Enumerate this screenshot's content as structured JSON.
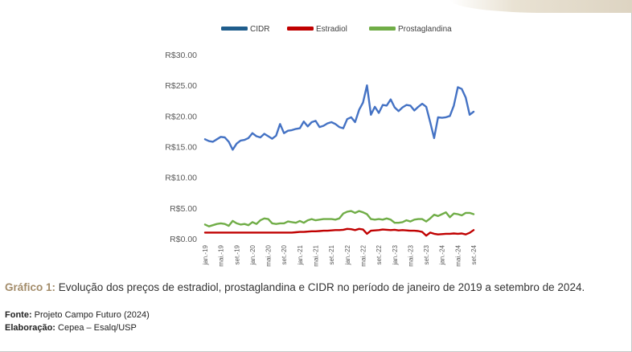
{
  "chart_data": {
    "type": "line",
    "title": "",
    "xlabel": "",
    "ylabel": "",
    "ylim": [
      0,
      30
    ],
    "y_ticks": [
      "R$30.00",
      "R$25.00",
      "R$20.00",
      "R$15.00",
      "R$10.00",
      "R$5.00",
      "R$0.00"
    ],
    "y_tick_values": [
      30,
      25,
      20,
      15,
      10,
      5,
      0
    ],
    "x_tick_labels": [
      "jan.-19",
      "mai.-19",
      "set.-19",
      "jan.-20",
      "mai.-20",
      "set.-20",
      "jan.-21",
      "mai.-21",
      "set.-21",
      "jan.-22",
      "mai.-22",
      "set.-22",
      "jan.-23",
      "mai.-23",
      "set.-23",
      "jan.-24",
      "mai.-24",
      "set.-24"
    ],
    "grid": false,
    "legend_position": "top",
    "series": [
      {
        "name": "CIDR",
        "color": "#4472c4",
        "legend_color": "#1f5d8c",
        "values": [
          16.2,
          15.9,
          15.8,
          16.2,
          16.6,
          16.5,
          15.8,
          14.5,
          15.5,
          16.0,
          16.1,
          16.4,
          17.2,
          16.7,
          16.5,
          17.1,
          16.7,
          16.3,
          16.8,
          18.7,
          17.2,
          17.6,
          17.7,
          17.9,
          18.0,
          19.1,
          18.3,
          19.0,
          19.2,
          18.2,
          18.4,
          18.8,
          19.0,
          18.7,
          18.2,
          18.0,
          19.5,
          19.8,
          19.0,
          21.0,
          22.2,
          25.0,
          20.2,
          21.5,
          20.5,
          21.8,
          21.7,
          22.7,
          21.4,
          20.8,
          21.4,
          21.8,
          21.7,
          20.9,
          21.5,
          22.0,
          21.5,
          19.0,
          16.4,
          19.8,
          19.7,
          19.8,
          20.0,
          21.7,
          24.7,
          24.4,
          23.0,
          20.2,
          20.7
        ]
      },
      {
        "name": "Estradiol",
        "color": "#c00000",
        "legend_color": "#c00000",
        "values": [
          1.0,
          1.0,
          1.0,
          1.0,
          1.0,
          1.0,
          1.0,
          1.0,
          1.0,
          1.0,
          1.0,
          1.0,
          1.0,
          1.0,
          1.0,
          1.0,
          1.0,
          1.0,
          1.0,
          1.0,
          1.0,
          1.0,
          1.0,
          1.05,
          1.1,
          1.1,
          1.15,
          1.2,
          1.2,
          1.25,
          1.3,
          1.3,
          1.35,
          1.4,
          1.4,
          1.45,
          1.6,
          1.55,
          1.4,
          1.6,
          1.5,
          0.8,
          1.3,
          1.35,
          1.4,
          1.5,
          1.45,
          1.4,
          1.45,
          1.35,
          1.4,
          1.35,
          1.3,
          1.3,
          1.25,
          1.1,
          0.5,
          1.0,
          0.8,
          0.7,
          0.75,
          0.8,
          0.8,
          0.85,
          0.8,
          0.85,
          0.7,
          0.95,
          1.4
        ]
      },
      {
        "name": "Prostaglandina",
        "color": "#70ad47",
        "legend_color": "#70ad47",
        "values": [
          2.3,
          2.0,
          2.2,
          2.4,
          2.5,
          2.4,
          2.1,
          2.9,
          2.5,
          2.3,
          2.4,
          2.2,
          2.7,
          2.4,
          3.0,
          3.3,
          3.2,
          2.5,
          2.4,
          2.5,
          2.5,
          2.8,
          2.7,
          2.6,
          2.9,
          2.6,
          3.0,
          3.2,
          3.0,
          3.1,
          3.2,
          3.2,
          3.2,
          3.1,
          3.3,
          4.1,
          4.4,
          4.5,
          4.2,
          4.5,
          4.3,
          4.0,
          3.2,
          3.1,
          3.2,
          3.1,
          3.3,
          3.1,
          2.6,
          2.6,
          2.7,
          3.0,
          2.8,
          3.1,
          3.2,
          3.2,
          2.8,
          3.3,
          3.9,
          3.7,
          4.0,
          4.3,
          3.5,
          4.1,
          4.0,
          3.8,
          4.2,
          4.2,
          4.0
        ]
      }
    ]
  },
  "caption": {
    "label": "Gráfico 1:",
    "text": " Evolução dos preços de estradiol, prostaglandina e CIDR no período de janeiro de 2019 a setembro de 2024."
  },
  "source": {
    "label": "Fonte:",
    "text": " Projeto Campo Futuro (2024)"
  },
  "elaboration": {
    "label": "Elaboração:",
    "text": " Cepea – Esalq/USP"
  }
}
